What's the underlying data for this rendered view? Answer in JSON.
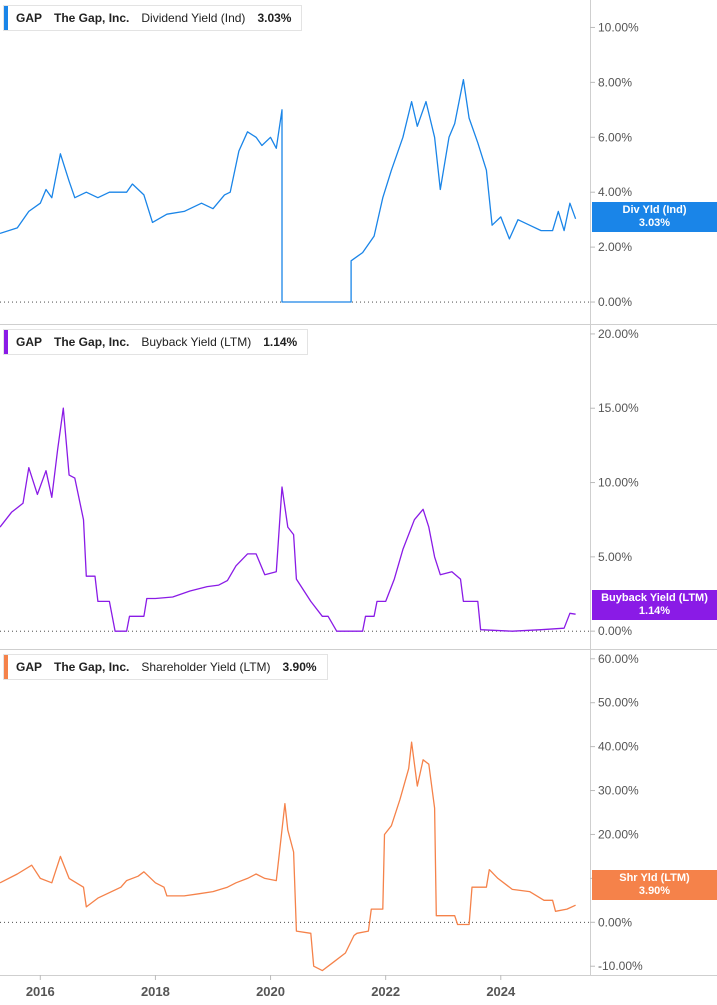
{
  "panels": [
    {
      "ticker": "GAP",
      "company": "The Gap, Inc.",
      "metric": "Dividend Yield (Ind)",
      "value": "3.03%",
      "tag_label": "Div Yld (Ind)",
      "tag_value": "3.03%",
      "color": "#1a85e8"
    },
    {
      "ticker": "GAP",
      "company": "The Gap, Inc.",
      "metric": "Buyback Yield (LTM)",
      "value": "1.14%",
      "tag_label": "Buyback Yield (LTM)",
      "tag_value": "1.14%",
      "color": "#8a1be6"
    },
    {
      "ticker": "GAP",
      "company": "The Gap, Inc.",
      "metric": "Shareholder Yield (LTM)",
      "value": "3.90%",
      "tag_label": "Shr Yld (LTM)",
      "tag_value": "3.90%",
      "color": "#f5824a"
    }
  ],
  "chart_data": [
    {
      "type": "line",
      "series": [
        {
          "name": "Dividend Yield (Ind)",
          "color": "#1a85e8",
          "points": [
            [
              2015.3,
              2.5
            ],
            [
              2015.6,
              2.7
            ],
            [
              2015.8,
              3.3
            ],
            [
              2016.0,
              3.6
            ],
            [
              2016.1,
              4.1
            ],
            [
              2016.2,
              3.8
            ],
            [
              2016.35,
              5.4
            ],
            [
              2016.5,
              4.4
            ],
            [
              2016.6,
              3.8
            ],
            [
              2016.8,
              4.0
            ],
            [
              2017.0,
              3.8
            ],
            [
              2017.2,
              4.0
            ],
            [
              2017.5,
              4.0
            ],
            [
              2017.6,
              4.3
            ],
            [
              2017.8,
              3.9
            ],
            [
              2017.95,
              2.9
            ],
            [
              2018.2,
              3.2
            ],
            [
              2018.5,
              3.3
            ],
            [
              2018.8,
              3.6
            ],
            [
              2019.0,
              3.4
            ],
            [
              2019.2,
              3.9
            ],
            [
              2019.3,
              4.0
            ],
            [
              2019.45,
              5.5
            ],
            [
              2019.6,
              6.2
            ],
            [
              2019.75,
              6.0
            ],
            [
              2019.85,
              5.7
            ],
            [
              2020.0,
              6.0
            ],
            [
              2020.1,
              5.6
            ],
            [
              2020.2,
              7.0
            ],
            [
              2020.2,
              0.0
            ],
            [
              2021.4,
              0.0
            ],
            [
              2021.4,
              1.5
            ],
            [
              2021.6,
              1.8
            ],
            [
              2021.8,
              2.4
            ],
            [
              2021.95,
              3.8
            ],
            [
              2022.1,
              4.8
            ],
            [
              2022.3,
              6.0
            ],
            [
              2022.45,
              7.3
            ],
            [
              2022.55,
              6.4
            ],
            [
              2022.7,
              7.3
            ],
            [
              2022.85,
              6.0
            ],
            [
              2022.95,
              4.1
            ],
            [
              2023.1,
              6.0
            ],
            [
              2023.2,
              6.5
            ],
            [
              2023.35,
              8.1
            ],
            [
              2023.45,
              6.7
            ],
            [
              2023.6,
              5.8
            ],
            [
              2023.75,
              4.8
            ],
            [
              2023.85,
              2.8
            ],
            [
              2024.0,
              3.1
            ],
            [
              2024.15,
              2.3
            ],
            [
              2024.3,
              3.0
            ],
            [
              2024.5,
              2.8
            ],
            [
              2024.7,
              2.6
            ],
            [
              2024.9,
              2.6
            ],
            [
              2025.0,
              3.3
            ],
            [
              2025.1,
              2.6
            ],
            [
              2025.2,
              3.6
            ],
            [
              2025.3,
              3.03
            ]
          ]
        }
      ],
      "ylim": [
        -0.8,
        11.0
      ],
      "yticks": [
        "0.00%",
        "2.00%",
        "4.00%",
        "6.00%",
        "8.00%",
        "10.00%"
      ],
      "ytick_values": [
        0,
        2,
        4,
        6,
        8,
        10
      ]
    },
    {
      "type": "line",
      "series": [
        {
          "name": "Buyback Yield (LTM)",
          "color": "#8a1be6",
          "points": [
            [
              2015.3,
              7.0
            ],
            [
              2015.5,
              8.0
            ],
            [
              2015.7,
              8.6
            ],
            [
              2015.8,
              11.0
            ],
            [
              2015.95,
              9.2
            ],
            [
              2016.1,
              10.8
            ],
            [
              2016.2,
              9.0
            ],
            [
              2016.3,
              12.2
            ],
            [
              2016.4,
              15.0
            ],
            [
              2016.5,
              10.5
            ],
            [
              2016.6,
              10.3
            ],
            [
              2016.75,
              7.5
            ],
            [
              2016.8,
              3.7
            ],
            [
              2016.95,
              3.7
            ],
            [
              2017.0,
              2.0
            ],
            [
              2017.2,
              2.0
            ],
            [
              2017.3,
              0.0
            ],
            [
              2017.5,
              0.0
            ],
            [
              2017.55,
              1.0
            ],
            [
              2017.8,
              1.0
            ],
            [
              2017.85,
              2.2
            ],
            [
              2018.0,
              2.2
            ],
            [
              2018.3,
              2.3
            ],
            [
              2018.6,
              2.7
            ],
            [
              2018.9,
              3.0
            ],
            [
              2019.1,
              3.1
            ],
            [
              2019.25,
              3.4
            ],
            [
              2019.4,
              4.4
            ],
            [
              2019.6,
              5.2
            ],
            [
              2019.75,
              5.2
            ],
            [
              2019.9,
              3.8
            ],
            [
              2020.1,
              4.0
            ],
            [
              2020.2,
              9.7
            ],
            [
              2020.3,
              7.0
            ],
            [
              2020.4,
              6.5
            ],
            [
              2020.45,
              3.5
            ],
            [
              2020.7,
              2.0
            ],
            [
              2020.9,
              1.0
            ],
            [
              2021.0,
              1.0
            ],
            [
              2021.15,
              0.0
            ],
            [
              2021.6,
              0.0
            ],
            [
              2021.65,
              1.0
            ],
            [
              2021.8,
              1.0
            ],
            [
              2021.85,
              2.0
            ],
            [
              2022.0,
              2.0
            ],
            [
              2022.15,
              3.5
            ],
            [
              2022.3,
              5.5
            ],
            [
              2022.5,
              7.5
            ],
            [
              2022.65,
              8.2
            ],
            [
              2022.75,
              7.0
            ],
            [
              2022.85,
              5.0
            ],
            [
              2022.95,
              3.8
            ],
            [
              2023.15,
              4.0
            ],
            [
              2023.3,
              3.5
            ],
            [
              2023.35,
              2.0
            ],
            [
              2023.6,
              2.0
            ],
            [
              2023.65,
              0.1
            ],
            [
              2024.2,
              0.0
            ],
            [
              2024.7,
              0.1
            ],
            [
              2025.1,
              0.2
            ],
            [
              2025.2,
              1.2
            ],
            [
              2025.3,
              1.14
            ]
          ]
        }
      ],
      "ylim": [
        -1.2,
        20.6
      ],
      "yticks": [
        "0.00%",
        "5.00%",
        "10.00%",
        "15.00%",
        "20.00%"
      ],
      "ytick_values": [
        0,
        5,
        10,
        15,
        20
      ]
    },
    {
      "type": "line",
      "series": [
        {
          "name": "Shareholder Yield (LTM)",
          "color": "#f5824a",
          "points": [
            [
              2015.3,
              9.0
            ],
            [
              2015.6,
              11.0
            ],
            [
              2015.85,
              13.0
            ],
            [
              2016.0,
              10.0
            ],
            [
              2016.2,
              9.0
            ],
            [
              2016.35,
              15.0
            ],
            [
              2016.5,
              10.0
            ],
            [
              2016.75,
              8.0
            ],
            [
              2016.8,
              3.5
            ],
            [
              2017.0,
              5.5
            ],
            [
              2017.4,
              8.0
            ],
            [
              2017.5,
              9.5
            ],
            [
              2017.7,
              10.5
            ],
            [
              2017.8,
              11.5
            ],
            [
              2018.0,
              9.0
            ],
            [
              2018.15,
              8.0
            ],
            [
              2018.2,
              6.0
            ],
            [
              2018.5,
              6.0
            ],
            [
              2018.75,
              6.5
            ],
            [
              2019.0,
              7.0
            ],
            [
              2019.25,
              8.0
            ],
            [
              2019.4,
              9.0
            ],
            [
              2019.6,
              10.0
            ],
            [
              2019.75,
              11.0
            ],
            [
              2019.9,
              10.0
            ],
            [
              2020.1,
              9.5
            ],
            [
              2020.25,
              27.0
            ],
            [
              2020.3,
              21.0
            ],
            [
              2020.4,
              16.0
            ],
            [
              2020.45,
              -2.0
            ],
            [
              2020.7,
              -2.5
            ],
            [
              2020.75,
              -10.0
            ],
            [
              2020.9,
              -11.0
            ],
            [
              2021.1,
              -9.0
            ],
            [
              2021.3,
              -7.0
            ],
            [
              2021.45,
              -3.0
            ],
            [
              2021.5,
              -2.5
            ],
            [
              2021.7,
              -2.0
            ],
            [
              2021.75,
              3.0
            ],
            [
              2021.95,
              3.0
            ],
            [
              2021.98,
              20.0
            ],
            [
              2022.1,
              22.0
            ],
            [
              2022.25,
              28.0
            ],
            [
              2022.4,
              35.0
            ],
            [
              2022.45,
              41.0
            ],
            [
              2022.55,
              31.0
            ],
            [
              2022.65,
              37.0
            ],
            [
              2022.75,
              36.0
            ],
            [
              2022.85,
              26.0
            ],
            [
              2022.88,
              1.5
            ],
            [
              2023.2,
              1.5
            ],
            [
              2023.25,
              -0.5
            ],
            [
              2023.45,
              -0.5
            ],
            [
              2023.5,
              8.0
            ],
            [
              2023.75,
              8.0
            ],
            [
              2023.8,
              12.0
            ],
            [
              2023.95,
              10.0
            ],
            [
              2024.2,
              7.5
            ],
            [
              2024.5,
              7.0
            ],
            [
              2024.75,
              5.0
            ],
            [
              2024.9,
              5.0
            ],
            [
              2024.95,
              2.5
            ],
            [
              2025.15,
              3.0
            ],
            [
              2025.3,
              3.9
            ]
          ]
        }
      ],
      "ylim": [
        -12.0,
        62.0
      ],
      "yticks": [
        "-10.00%",
        "0.00%",
        "10.00%",
        "20.00%",
        "30.00%",
        "40.00%",
        "50.00%",
        "60.00%"
      ],
      "ytick_values": [
        -10,
        0,
        10,
        20,
        30,
        40,
        50,
        60
      ]
    }
  ],
  "x_axis": {
    "ticks": [
      "2016",
      "2018",
      "2020",
      "2022",
      "2024"
    ],
    "tick_values": [
      2016,
      2018,
      2020,
      2022,
      2024
    ],
    "range": [
      2015.3,
      2025.55
    ]
  }
}
